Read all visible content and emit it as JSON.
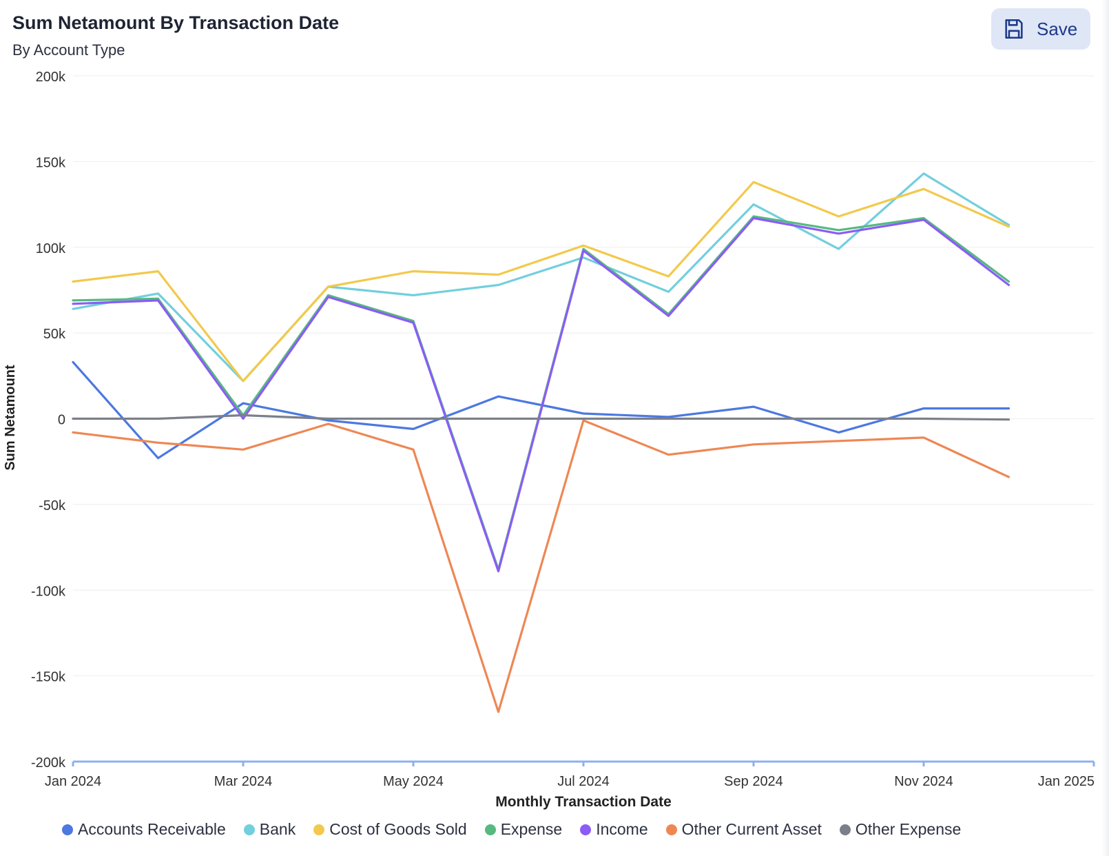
{
  "header": {
    "title": "Sum Netamount By Transaction Date",
    "subtitle": "By Account Type",
    "save_label": "Save",
    "save_icon": "floppy-disk-icon"
  },
  "colors": {
    "accent": "#1d3a8a",
    "save_bg": "#dfe6f6",
    "axis": "#8fb0ee",
    "grid": "#eeeeee"
  },
  "chart_data": {
    "type": "line",
    "title": "Sum Netamount By Transaction Date",
    "subtitle": "By Account Type",
    "xlabel": "Monthly Transaction Date",
    "ylabel": "Sum Netamount",
    "x": [
      "2024-01",
      "2024-02",
      "2024-03",
      "2024-04",
      "2024-05",
      "2024-06",
      "2024-07",
      "2024-08",
      "2024-09",
      "2024-10",
      "2024-11",
      "2024-12"
    ],
    "xlim": [
      "2024-01",
      "2025-01"
    ],
    "x_ticks": [
      "Jan 2024",
      "Mar 2024",
      "May 2024",
      "Jul 2024",
      "Sep 2024",
      "Nov 2024",
      "Jan 2025"
    ],
    "ylim": [
      -200000,
      200000
    ],
    "y_ticks": [
      200000,
      150000,
      100000,
      50000,
      0,
      -50000,
      -100000,
      -150000,
      -200000
    ],
    "y_tick_labels": [
      "200k",
      "150k",
      "100k",
      "50k",
      "0",
      "-50k",
      "-100k",
      "-150k",
      "-200k"
    ],
    "grid": true,
    "legend_position": "bottom",
    "series": [
      {
        "name": "Accounts Receivable",
        "color": "#4c78e0",
        "values": [
          33000,
          -23000,
          9000,
          -1000,
          -6000,
          13000,
          3000,
          1000,
          7000,
          -8000,
          6000,
          6000
        ]
      },
      {
        "name": "Bank",
        "color": "#72cfdd",
        "values": [
          64000,
          73000,
          22000,
          77000,
          72000,
          78000,
          94000,
          74000,
          125000,
          99000,
          143000,
          113000
        ]
      },
      {
        "name": "Cost of Goods Sold",
        "color": "#f2c94c",
        "values": [
          80000,
          86000,
          22000,
          77000,
          86000,
          84000,
          101000,
          83000,
          138000,
          118000,
          134000,
          112000
        ]
      },
      {
        "name": "Expense",
        "color": "#56b982",
        "values": [
          69000,
          70000,
          2000,
          72000,
          57000,
          -88000,
          99000,
          61000,
          118000,
          110000,
          117000,
          80000
        ]
      },
      {
        "name": "Income",
        "color": "#8b5cf6",
        "values": [
          67000,
          69000,
          0,
          71000,
          56000,
          -89000,
          98000,
          60000,
          117000,
          108000,
          116000,
          78000
        ]
      },
      {
        "name": "Other Current Asset",
        "color": "#ee8754",
        "values": [
          -8000,
          -14000,
          -18000,
          -3000,
          -18000,
          -171000,
          -1000,
          -21000,
          -15000,
          -13000,
          -11000,
          -34000
        ]
      },
      {
        "name": "Other Expense",
        "color": "#7b7f8a",
        "values": [
          0,
          0,
          2000,
          0,
          0,
          0,
          0,
          0,
          0,
          0,
          0,
          -500
        ]
      }
    ]
  }
}
